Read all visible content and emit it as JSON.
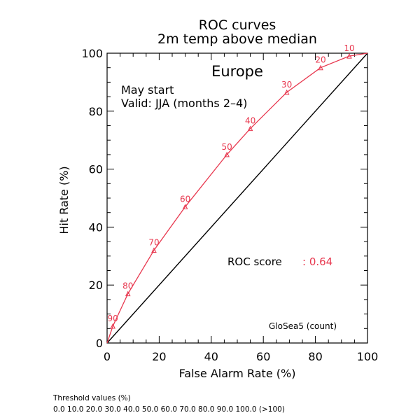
{
  "chart_data": {
    "type": "line",
    "title": "ROC curves",
    "subtitle": "2m temp above median",
    "region": "Europe",
    "annotation_lines": [
      "May start",
      "Valid: JJA (months 2–4)"
    ],
    "xlabel": "False Alarm Rate (%)",
    "ylabel": "Hit Rate (%)",
    "xlim": [
      0,
      100
    ],
    "ylim": [
      0,
      100
    ],
    "xticks": [
      "0",
      "20",
      "40",
      "60",
      "80",
      "100"
    ],
    "yticks": [
      "0",
      "20",
      "40",
      "60",
      "80",
      "100"
    ],
    "grid": false,
    "roc_score_label": "ROC score",
    "roc_score_value": ": 0.64",
    "model_label": "GloSea5 (count)",
    "colors": {
      "curve": "#e8384f",
      "diagonal": "#000000"
    },
    "series": [
      {
        "points": [
          {
            "x": 0,
            "y": 0,
            "label": ""
          },
          {
            "x": 2.2,
            "y": 5.8,
            "label": "90"
          },
          {
            "x": 8,
            "y": 17,
            "label": "80"
          },
          {
            "x": 18,
            "y": 32,
            "label": "70"
          },
          {
            "x": 30,
            "y": 47,
            "label": "60"
          },
          {
            "x": 46,
            "y": 65,
            "label": "50"
          },
          {
            "x": 55,
            "y": 74,
            "label": "40"
          },
          {
            "x": 69,
            "y": 86.5,
            "label": "30"
          },
          {
            "x": 82,
            "y": 95,
            "label": "20"
          },
          {
            "x": 93,
            "y": 99,
            "label": "10"
          },
          {
            "x": 100,
            "y": 100,
            "label": ""
          }
        ]
      }
    ]
  },
  "footer": {
    "threshold_title": "Threshold values (%)",
    "threshold_values": "0.0 10.0 20.0 30.0 40.0 50.0 60.0 70.0 80.0 90.0 100.0 (>100)"
  }
}
